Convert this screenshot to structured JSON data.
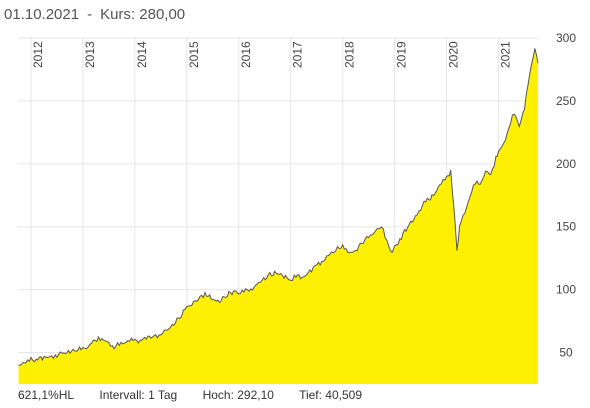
{
  "header": {
    "date": "01.10.2021",
    "separator": "-",
    "price_label": "Kurs: 280,00"
  },
  "footer": {
    "performance": "621,1%HL",
    "interval": "Intervall: 1 Tag",
    "high": "Hoch:  292,10",
    "low": "Tief:  40,509"
  },
  "colors": {
    "fill": "#ffef00",
    "line": "#555555",
    "grid": "#e6e6e6"
  },
  "chart_data": {
    "type": "area",
    "title": "",
    "xlabel": "",
    "ylabel": "",
    "ylim": [
      25,
      300
    ],
    "yticks": [
      50,
      100,
      150,
      200,
      250,
      300
    ],
    "year_labels": [
      "2012",
      "2013",
      "2014",
      "2015",
      "2016",
      "2017",
      "2018",
      "2019",
      "2020",
      "2021"
    ],
    "x_range": [
      2011.75,
      2021.76
    ],
    "grid": true,
    "series": [
      {
        "x": [
          2011.76,
          2011.9,
          2012.0,
          2012.1,
          2012.25,
          2012.4,
          2012.5,
          2012.6,
          2012.75,
          2012.9,
          2013.0,
          2013.1,
          2013.2,
          2013.3,
          2013.4,
          2013.5,
          2013.6,
          2013.7,
          2013.8,
          2013.9,
          2014.0,
          2014.1,
          2014.25,
          2014.4,
          2014.5,
          2014.6,
          2014.75,
          2014.9,
          2015.0,
          2015.1,
          2015.25,
          2015.35,
          2015.5,
          2015.6,
          2015.75,
          2015.9,
          2016.0,
          2016.1,
          2016.2,
          2016.3,
          2016.45,
          2016.6,
          2016.75,
          2016.9,
          2017.0,
          2017.1,
          2017.25,
          2017.4,
          2017.5,
          2017.6,
          2017.75,
          2017.9,
          2018.0,
          2018.1,
          2018.25,
          2018.4,
          2018.5,
          2018.6,
          2018.75,
          2018.85,
          2018.95,
          2019.0,
          2019.1,
          2019.25,
          2019.4,
          2019.5,
          2019.6,
          2019.75,
          2019.9,
          2020.0,
          2020.08,
          2020.15,
          2020.2,
          2020.25,
          2020.35,
          2020.45,
          2020.55,
          2020.65,
          2020.75,
          2020.85,
          2020.95,
          2021.0,
          2021.1,
          2021.2,
          2021.3,
          2021.4,
          2021.5,
          2021.6,
          2021.65,
          2021.7,
          2021.76
        ],
        "values": [
          40,
          42,
          44,
          45,
          46,
          47,
          48,
          49,
          51,
          52,
          53,
          55,
          58,
          62,
          60,
          57,
          55,
          56,
          58,
          60,
          59,
          60,
          62,
          63,
          65,
          67,
          73,
          80,
          86,
          89,
          93,
          97,
          92,
          90,
          95,
          99,
          97,
          100,
          98,
          103,
          107,
          112,
          113,
          110,
          108,
          111,
          110,
          116,
          119,
          122,
          128,
          132,
          136,
          129,
          131,
          139,
          141,
          146,
          150,
          138,
          130,
          133,
          140,
          150,
          158,
          165,
          170,
          175,
          185,
          188,
          195,
          160,
          130,
          152,
          160,
          175,
          185,
          183,
          195,
          190,
          205,
          210,
          215,
          230,
          240,
          230,
          245,
          270,
          282,
          291,
          280
        ]
      }
    ]
  }
}
